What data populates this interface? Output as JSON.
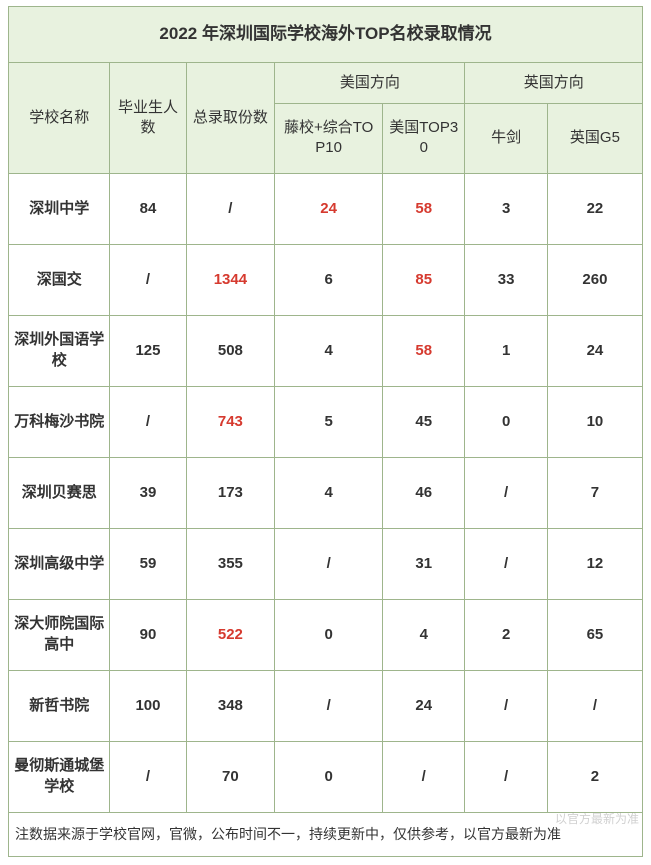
{
  "title": "2022 年深圳国际学校海外TOP名校录取情况",
  "colors": {
    "header_bg": "#e8f2df",
    "border": "#9eb58c",
    "body_bg": "#ffffff",
    "text": "#333333",
    "highlight": "#d63a2f"
  },
  "layout": {
    "col_widths_pct": [
      16,
      12,
      14,
      17,
      13,
      13,
      15
    ]
  },
  "headers": {
    "school": "学校名称",
    "grads": "毕业生人数",
    "total": "总录取份数",
    "us_group": "美国方向",
    "uk_group": "英国方向",
    "us_top10": "藤校+综合TOP10",
    "us_top30": "美国TOP30",
    "uk_oxbridge": "牛剑",
    "uk_g5": "英国G5"
  },
  "rows": [
    {
      "school": "深圳中学",
      "grads": "84",
      "total": "/",
      "us10": "24",
      "us30": "58",
      "ox": "3",
      "g5": "22",
      "hl": {
        "total": false,
        "us10": true,
        "us30": true
      }
    },
    {
      "school": "深国交",
      "grads": "/",
      "total": "1344",
      "us10": "6",
      "us30": "85",
      "ox": "33",
      "g5": "260",
      "hl": {
        "total": true,
        "us10": false,
        "us30": true
      }
    },
    {
      "school": "深圳外国语学校",
      "grads": "125",
      "total": "508",
      "us10": "4",
      "us30": "58",
      "ox": "1",
      "g5": "24",
      "hl": {
        "total": false,
        "us10": false,
        "us30": true
      }
    },
    {
      "school": "万科梅沙书院",
      "grads": "/",
      "total": "743",
      "us10": "5",
      "us30": "45",
      "ox": "0",
      "g5": "10",
      "hl": {
        "total": true,
        "us10": false,
        "us30": false
      }
    },
    {
      "school": "深圳贝赛思",
      "grads": "39",
      "total": "173",
      "us10": "4",
      "us30": "46",
      "ox": "/",
      "g5": "7",
      "hl": {
        "total": false,
        "us10": false,
        "us30": false
      }
    },
    {
      "school": "深圳高级中学",
      "grads": "59",
      "total": "355",
      "us10": "/",
      "us30": "31",
      "ox": "/",
      "g5": "12",
      "hl": {
        "total": false,
        "us10": false,
        "us30": false
      }
    },
    {
      "school": "深大师院国际高中",
      "grads": "90",
      "total": "522",
      "us10": "0",
      "us30": "4",
      "ox": "2",
      "g5": "65",
      "hl": {
        "total": true,
        "us10": false,
        "us30": false
      }
    },
    {
      "school": "新哲书院",
      "grads": "100",
      "total": "348",
      "us10": "/",
      "us30": "24",
      "ox": "/",
      "g5": "/",
      "hl": {
        "total": false,
        "us10": false,
        "us30": false
      }
    },
    {
      "school": "曼彻斯通城堡学校",
      "grads": "/",
      "total": "70",
      "us10": "0",
      "us30": "/",
      "ox": "/",
      "g5": "2",
      "hl": {
        "total": false,
        "us10": false,
        "us30": false
      }
    }
  ],
  "note": "注数据来源于学校官网，官微，公布时间不一，持续更新中，仅供参考，以官方最新为准",
  "watermark": "以官方最新为准"
}
